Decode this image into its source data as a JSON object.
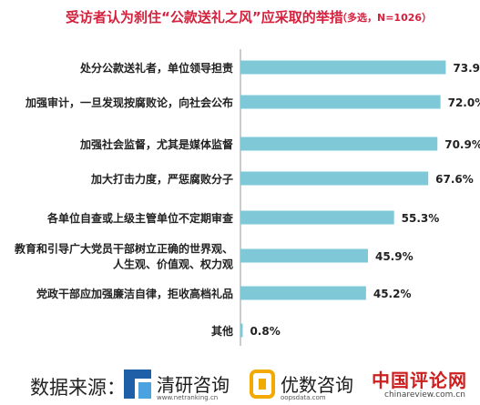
{
  "chart_data": {
    "type": "bar",
    "orientation": "horizontal",
    "title": "受访者认为刹住“公款送礼之风”应采取的举措",
    "subtitle": "（多选，N=1026）",
    "categories": [
      [
        "处分公款送礼者，单位领导担责"
      ],
      [
        "加强审计，一旦发现按腐败论，向社会公布"
      ],
      [
        "加强社会监督，尤其是媒体监督"
      ],
      [
        "加大打击力度，严惩腐败分子"
      ],
      [
        "各单位自查或上级主管单位不定期审查"
      ],
      [
        "教育和引导广大党员干部树立正确的世界观、",
        "人生观、价值观、权力观"
      ],
      [
        "党政干部应加强廉洁自律，拒收高档礼品"
      ],
      [
        "其他"
      ]
    ],
    "values": [
      73.9,
      72.0,
      70.9,
      67.6,
      55.3,
      45.9,
      45.2,
      0.8
    ],
    "value_labels": [
      "73.9%",
      "72.0%",
      "70.9%",
      "67.6%",
      "55.3%",
      "45.9%",
      "45.2%",
      "0.8%"
    ],
    "xlim": [
      0,
      100
    ],
    "grid": false,
    "colors": {
      "bar": "#7ec8d8",
      "title": "#d4213d",
      "text": "#222222"
    }
  },
  "footer": {
    "source_label": "数据来源：",
    "logo1_name": "清研咨询",
    "logo1_url": "www.netranking.cn",
    "logo2_name": "优数咨询",
    "logo2_url": "oopsdata.com",
    "watermark_cn": "中国评论网",
    "watermark_en": "chinareview.com.cn"
  }
}
